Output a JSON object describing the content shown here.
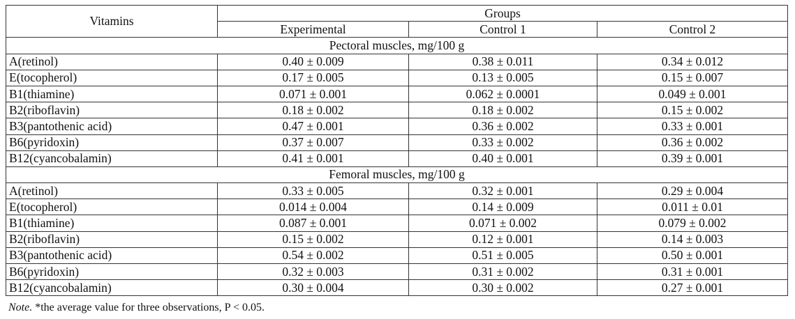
{
  "header": {
    "vitamins_label": "Vitamins",
    "groups_label": "Groups",
    "columns": [
      "Experimental",
      "Control 1",
      "Control 2"
    ]
  },
  "sections": [
    {
      "title": "Pectoral muscles, mg/100 g",
      "rows": [
        {
          "vitamin": "A(retinol)",
          "values": [
            "0.40 ± 0.009",
            "0.38 ± 0.011",
            "0.34 ± 0.012"
          ]
        },
        {
          "vitamin": "E(tocopherol)",
          "values": [
            "0.17 ± 0.005",
            "0.13 ± 0.005",
            "0.15 ± 0.007"
          ]
        },
        {
          "vitamin": "B1(thiamine)",
          "values": [
            "0.071 ± 0.001",
            "0.062 ± 0.0001",
            "0.049 ± 0.001"
          ]
        },
        {
          "vitamin": "B2(riboflavin)",
          "values": [
            "0.18 ± 0.002",
            "0.18 ± 0.002",
            "0.15 ± 0.002"
          ]
        },
        {
          "vitamin": "B3(pantothenic acid)",
          "values": [
            "0.47 ± 0.001",
            "0.36 ± 0.002",
            "0.33 ± 0.001"
          ]
        },
        {
          "vitamin": "B6(pyridoxin)",
          "values": [
            "0.37 ± 0.007",
            "0.33 ± 0.002",
            "0.36 ± 0.002"
          ]
        },
        {
          "vitamin": "B12(cyancobalamin)",
          "values": [
            "0.41 ± 0.001",
            "0.40 ± 0.001",
            "0.39 ± 0.001"
          ]
        }
      ]
    },
    {
      "title": "Femoral muscles, mg/100 g",
      "rows": [
        {
          "vitamin": "A(retinol)",
          "values": [
            "0.33 ± 0.005",
            "0.32 ± 0.001",
            "0.29 ± 0.004"
          ]
        },
        {
          "vitamin": "E(tocopherol)",
          "values": [
            "0.014 ± 0.004",
            "0.14 ± 0.009",
            "0.011 ± 0.01"
          ]
        },
        {
          "vitamin": "B1(thiamine)",
          "values": [
            "0.087 ± 0.001",
            "0.071 ± 0.002",
            "0.079 ± 0.002"
          ]
        },
        {
          "vitamin": "B2(riboflavin)",
          "values": [
            "0.15 ± 0.002",
            "0.12 ± 0.001",
            "0.14 ± 0.003"
          ]
        },
        {
          "vitamin": "B3(pantothenic acid)",
          "values": [
            "0.54 ± 0.002",
            "0.51 ± 0.005",
            "0.50 ± 0.001"
          ]
        },
        {
          "vitamin": "B6(pyridoxin)",
          "values": [
            "0.32 ± 0.003",
            "0.31 ± 0.002",
            "0.31 ± 0.001"
          ]
        },
        {
          "vitamin": "B12(cyancobalamin)",
          "values": [
            "0.30 ± 0.004",
            "0.30 ± 0.002",
            "0.27 ± 0.001"
          ]
        }
      ]
    }
  ],
  "note": {
    "label": "Note.",
    "text": " *the average value for three observations, P < 0.05."
  }
}
